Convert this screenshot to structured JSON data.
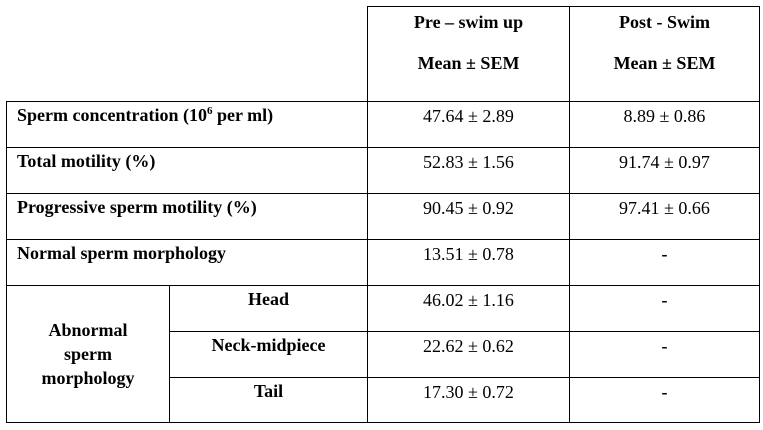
{
  "header": {
    "pre": {
      "line1": "Pre – swim up",
      "line2": "Mean ± SEM"
    },
    "post": {
      "line1": "Post - Swim",
      "line2": "Mean ± SEM"
    }
  },
  "rows": [
    {
      "label_prefix": "Sperm concentration (10",
      "label_sup": "6",
      "label_suffix": " per ml)",
      "pre": "47.64 ± 2.89",
      "post": "8.89 ± 0.86"
    },
    {
      "label": "Total motility (%)",
      "pre": "52.83 ± 1.56",
      "post": "91.74 ± 0.97"
    },
    {
      "label": "Progressive sperm motility (%)",
      "pre": "90.45 ± 0.92",
      "post": "97.41 ± 0.66"
    },
    {
      "label": "Normal sperm morphology",
      "pre": "13.51 ± 0.78",
      "post": "-"
    }
  ],
  "abnormal": {
    "line1": "Abnormal",
    "line2": "sperm",
    "line3": "morphology",
    "subrows": [
      {
        "label": "Head",
        "pre": "46.02 ± 1.16",
        "post": "-"
      },
      {
        "label": "Neck-midpiece",
        "pre": "22.62 ± 0.62",
        "post": "-"
      },
      {
        "label": "Tail",
        "pre": "17.30 ± 0.72",
        "post": "-"
      }
    ]
  }
}
